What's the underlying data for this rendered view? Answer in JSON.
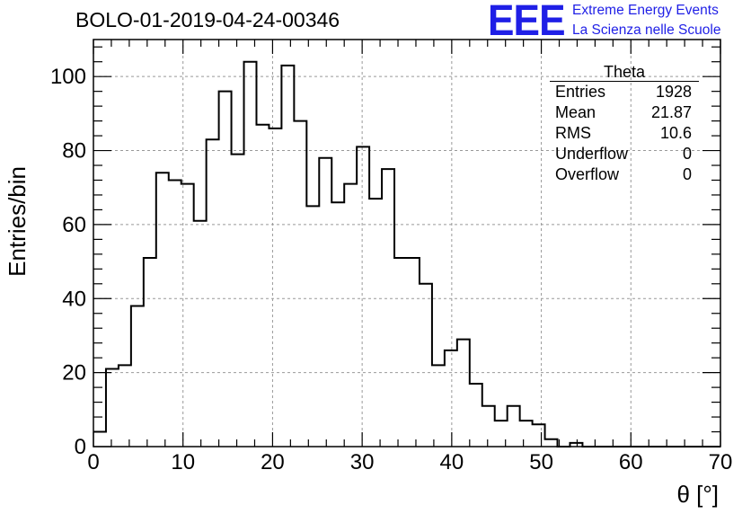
{
  "title": "BOLO-01-2019-04-24-00346",
  "branding": {
    "logo": "EEE",
    "line1": "Extreme Energy Events",
    "line2": "La Scienza nelle Scuole",
    "color": "#1f1fe6"
  },
  "stats_box": {
    "name": "Theta",
    "rows": [
      {
        "label": "Entries",
        "value": "1928"
      },
      {
        "label": "Mean",
        "value": "21.87"
      },
      {
        "label": "RMS",
        "value": "10.6"
      },
      {
        "label": "Underflow",
        "value": "0"
      },
      {
        "label": "Overflow",
        "value": "0"
      }
    ]
  },
  "chart_data": {
    "type": "histogram",
    "xlabel": "θ [°]",
    "ylabel": "Entries/bin",
    "xlim": [
      0,
      70
    ],
    "ylim": [
      0,
      110
    ],
    "bin_width": 1.4,
    "bin_edges_start": 0,
    "values": [
      4,
      21,
      22,
      38,
      51,
      74,
      72,
      71,
      61,
      83,
      96,
      79,
      104,
      87,
      86,
      103,
      88,
      65,
      78,
      66,
      71,
      81,
      67,
      75,
      51,
      51,
      44,
      22,
      26,
      29,
      17,
      11,
      7,
      11,
      7,
      6,
      2,
      0,
      1,
      0,
      0,
      0,
      0,
      0,
      0,
      0,
      0,
      0,
      0,
      0
    ],
    "x_ticks": [
      0,
      10,
      20,
      30,
      40,
      50,
      60,
      70
    ],
    "y_ticks": [
      0,
      20,
      40,
      60,
      80,
      100
    ],
    "grid": true,
    "line_color": "#000000"
  }
}
